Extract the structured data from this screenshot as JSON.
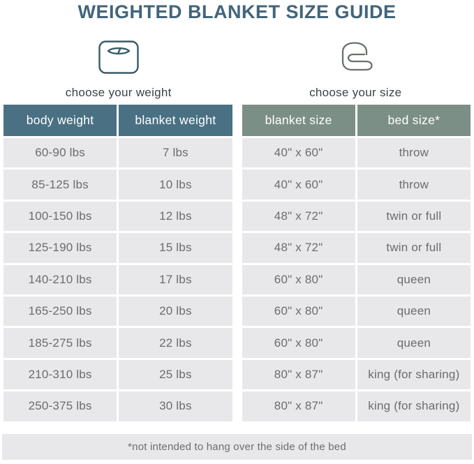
{
  "title": "WEIGHTED BLANKET SIZE GUIDE",
  "sections": [
    {
      "icon": "scale-icon",
      "caption": "choose your weight"
    },
    {
      "icon": "blanket-icon",
      "caption": "choose your size"
    }
  ],
  "chart_data": [
    {
      "type": "table",
      "title": "choose your weight",
      "columns": [
        "body weight",
        "blanket weight"
      ],
      "rows": [
        [
          "60-90 lbs",
          "7 lbs"
        ],
        [
          "85-125 lbs",
          "10 lbs"
        ],
        [
          "100-150 lbs",
          "12 lbs"
        ],
        [
          "125-190 lbs",
          "15 lbs"
        ],
        [
          "140-210 lbs",
          "17 lbs"
        ],
        [
          "165-250 lbs",
          "20 lbs"
        ],
        [
          "185-275 lbs",
          "22 lbs"
        ],
        [
          "210-310 lbs",
          "25 lbs"
        ],
        [
          "250-375 lbs",
          "30 lbs"
        ]
      ]
    },
    {
      "type": "table",
      "title": "choose your size",
      "columns": [
        "blanket size",
        "bed size*"
      ],
      "rows": [
        [
          "40\" x 60\"",
          "throw"
        ],
        [
          "40\" x 60\"",
          "throw"
        ],
        [
          "48\" x 72\"",
          "twin or full"
        ],
        [
          "48\" x 72\"",
          "twin or full"
        ],
        [
          "60\" x 80\"",
          "queen"
        ],
        [
          "60\" x 80\"",
          "queen"
        ],
        [
          "60\" x 80\"",
          "queen"
        ],
        [
          "80\" x 87\"",
          "king (for sharing)"
        ],
        [
          "80\" x 87\"",
          "king (for sharing)"
        ]
      ]
    }
  ],
  "footnote": "*not intended to hang over the side of the bed",
  "colors": {
    "title_text": "#41657b",
    "weight_header_bg": "#4a7183",
    "size_header_bg": "#7c8f86",
    "cell_bg": "#e8e8ea",
    "cell_text": "#6b6c6f"
  }
}
